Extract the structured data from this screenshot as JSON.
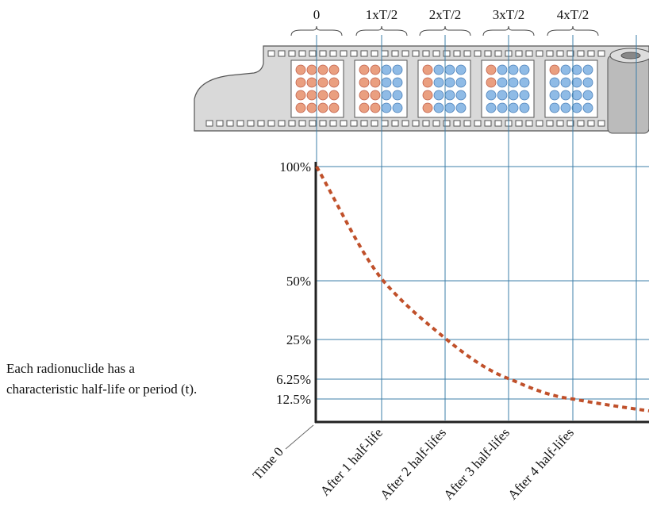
{
  "header_labels": [
    "0",
    "1xT/2",
    "2xT/2",
    "3xT/2",
    "4xT/2"
  ],
  "y_labels": [
    "100%",
    "50%",
    "25%",
    "6.25%",
    "12.5%"
  ],
  "x_labels": [
    "Time 0",
    "After 1 half-life",
    "After 2 half-lifes",
    "After 3 half-lifes",
    "After 4 half-lifes"
  ],
  "caption": [
    "Each radionuclide has a",
    "characteristic half-life or period (t)."
  ]
}
